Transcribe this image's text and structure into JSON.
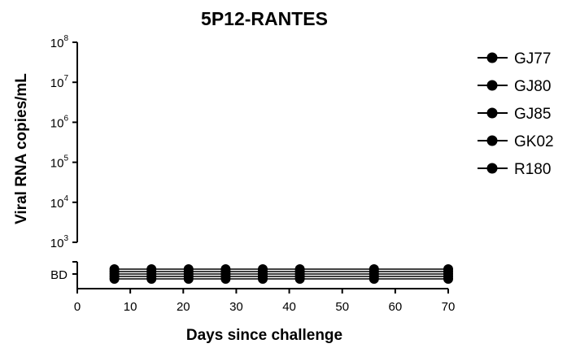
{
  "chart_data": {
    "type": "line",
    "title": "5P12-RANTES",
    "xlabel": "Days since challenge",
    "ylabel": "Viral RNA copies/mL",
    "x_ticks": [
      0,
      10,
      20,
      30,
      40,
      50,
      60,
      70
    ],
    "xlim": [
      0,
      70
    ],
    "y_scale": "log",
    "y_ticks": [
      {
        "base": "10",
        "exp": "3"
      },
      {
        "base": "10",
        "exp": "4"
      },
      {
        "base": "10",
        "exp": "5"
      },
      {
        "base": "10",
        "exp": "6"
      },
      {
        "base": "10",
        "exp": "7"
      },
      {
        "base": "10",
        "exp": "8"
      }
    ],
    "ylim": [
      1000,
      100000000
    ],
    "bd_label": "BD",
    "axis_break": true,
    "legend_position": "right",
    "grid": false,
    "marker_color": "#000000",
    "series": [
      {
        "name": "GJ77",
        "x": [
          7,
          14,
          21,
          28,
          35,
          42,
          56,
          70
        ],
        "y": [
          "BD",
          "BD",
          "BD",
          "BD",
          "BD",
          "BD",
          "BD",
          "BD"
        ]
      },
      {
        "name": "GJ80",
        "x": [
          7,
          14,
          21,
          28,
          35,
          42,
          56,
          70
        ],
        "y": [
          "BD",
          "BD",
          "BD",
          "BD",
          "BD",
          "BD",
          "BD",
          "BD"
        ]
      },
      {
        "name": "GJ85",
        "x": [
          7,
          14,
          21,
          28,
          35,
          42,
          56,
          70
        ],
        "y": [
          "BD",
          "BD",
          "BD",
          "BD",
          "BD",
          "BD",
          "BD",
          "BD"
        ]
      },
      {
        "name": "GK02",
        "x": [
          7,
          14,
          21,
          28,
          35,
          42,
          56,
          70
        ],
        "y": [
          "BD",
          "BD",
          "BD",
          "BD",
          "BD",
          "BD",
          "BD",
          "BD"
        ]
      },
      {
        "name": "R180",
        "x": [
          7,
          14,
          21,
          28,
          35,
          42,
          56,
          70
        ],
        "y": [
          "BD",
          "BD",
          "BD",
          "BD",
          "BD",
          "BD",
          "BD",
          "BD"
        ]
      }
    ]
  }
}
